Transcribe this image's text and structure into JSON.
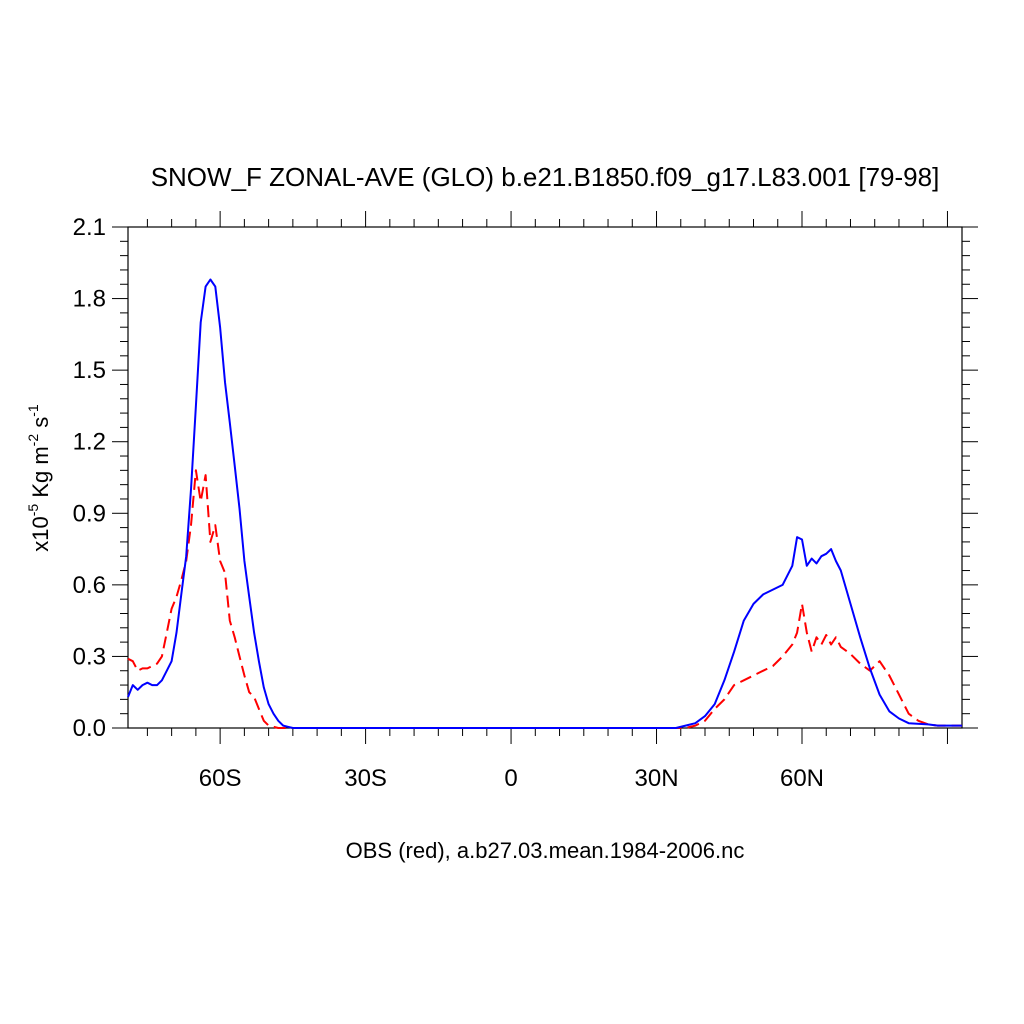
{
  "chart_data": {
    "type": "line",
    "title": "SNOW_F ZONAL-AVE (GLO) b.e21.B1850.f09_g17.L83.001 [79-98]",
    "xlabel": "OBS (red), a.b27.03.mean.1984-2006.nc",
    "ylabel": {
      "prefix": "x10",
      "exp1": "-5",
      "mid": " Kg m",
      "exp2": "-2",
      "mid2": " s",
      "exp3": "-1"
    },
    "xlim": [
      -79,
      93
    ],
    "ylim": [
      0,
      2.1
    ],
    "yticks": [
      0.0,
      0.3,
      0.6,
      0.9,
      1.2,
      1.5,
      1.8,
      2.1
    ],
    "ytick_labels": [
      "0.0",
      "0.3",
      "0.6",
      "0.9",
      "1.2",
      "1.5",
      "1.8",
      "2.1"
    ],
    "xticks": [
      -60,
      -30,
      0,
      30,
      60
    ],
    "xtick_labels": [
      "60S",
      "30S",
      "0",
      "30N",
      "60N"
    ],
    "grid": false,
    "series": [
      {
        "color": "#0000ff",
        "dash": "solid",
        "x": [
          -79,
          -78,
          -77,
          -76,
          -75,
          -74,
          -73,
          -72,
          -71,
          -70,
          -69,
          -68,
          -67,
          -66,
          -65,
          -64,
          -63,
          -62,
          -61,
          -60,
          -59,
          -58,
          -57,
          -56,
          -55,
          -54,
          -53,
          -52,
          -51,
          -50,
          -49,
          -48,
          -47,
          -46,
          -45,
          -44,
          -42,
          -40,
          -30,
          0,
          30,
          34,
          36,
          38,
          40,
          42,
          44,
          46,
          48,
          50,
          52,
          54,
          56,
          58,
          59,
          60,
          61,
          62,
          63,
          64,
          65,
          66,
          67,
          68,
          70,
          72,
          74,
          76,
          78,
          80,
          82,
          86,
          88,
          90,
          93
        ],
        "y": [
          0.13,
          0.18,
          0.16,
          0.18,
          0.19,
          0.18,
          0.18,
          0.2,
          0.24,
          0.28,
          0.4,
          0.56,
          0.72,
          1.0,
          1.35,
          1.7,
          1.85,
          1.88,
          1.85,
          1.68,
          1.45,
          1.28,
          1.1,
          0.92,
          0.7,
          0.55,
          0.4,
          0.28,
          0.17,
          0.1,
          0.06,
          0.03,
          0.01,
          0.005,
          0.0,
          0.0,
          0.0,
          0.0,
          0.0,
          0.0,
          0.0,
          0.0,
          0.01,
          0.02,
          0.05,
          0.1,
          0.2,
          0.32,
          0.45,
          0.52,
          0.56,
          0.58,
          0.6,
          0.68,
          0.8,
          0.79,
          0.68,
          0.71,
          0.69,
          0.72,
          0.73,
          0.75,
          0.7,
          0.66,
          0.52,
          0.38,
          0.25,
          0.14,
          0.07,
          0.04,
          0.02,
          0.015,
          0.01,
          0.01,
          0.01
        ]
      },
      {
        "color": "#ff0000",
        "dash": "dashed",
        "x": [
          -79,
          -78,
          -77,
          -76,
          -75,
          -74,
          -73,
          -72,
          -71,
          -70,
          -69,
          -68,
          -67,
          -66,
          -65,
          -64,
          -63,
          -62,
          -61,
          -60,
          -59,
          -58,
          -57,
          -56,
          -55,
          -54,
          -53,
          -52,
          -51,
          -50,
          -49,
          -48,
          -47,
          -46,
          -45,
          -44,
          -42,
          -40,
          -30,
          0,
          30,
          36,
          38,
          40,
          42,
          44,
          46,
          48,
          50,
          52,
          54,
          56,
          58,
          59,
          60,
          61,
          62,
          63,
          64,
          65,
          66,
          67,
          68,
          70,
          72,
          74,
          76,
          78,
          80,
          82,
          84,
          86,
          88,
          90,
          93
        ],
        "y": [
          0.29,
          0.28,
          0.24,
          0.25,
          0.25,
          0.26,
          0.27,
          0.3,
          0.4,
          0.5,
          0.55,
          0.62,
          0.7,
          0.85,
          1.08,
          0.95,
          1.06,
          0.78,
          0.85,
          0.7,
          0.65,
          0.45,
          0.38,
          0.3,
          0.22,
          0.15,
          0.13,
          0.08,
          0.03,
          0.01,
          0.005,
          0.0,
          0.0,
          0.0,
          0.0,
          0.0,
          0.0,
          0.0,
          0.0,
          0.0,
          0.0,
          0.0,
          0.01,
          0.03,
          0.08,
          0.12,
          0.18,
          0.2,
          0.22,
          0.24,
          0.26,
          0.3,
          0.35,
          0.4,
          0.52,
          0.4,
          0.32,
          0.38,
          0.35,
          0.39,
          0.35,
          0.38,
          0.34,
          0.31,
          0.27,
          0.24,
          0.28,
          0.22,
          0.14,
          0.06,
          0.03,
          0.015,
          0.01,
          0.01,
          0.01
        ]
      }
    ]
  }
}
